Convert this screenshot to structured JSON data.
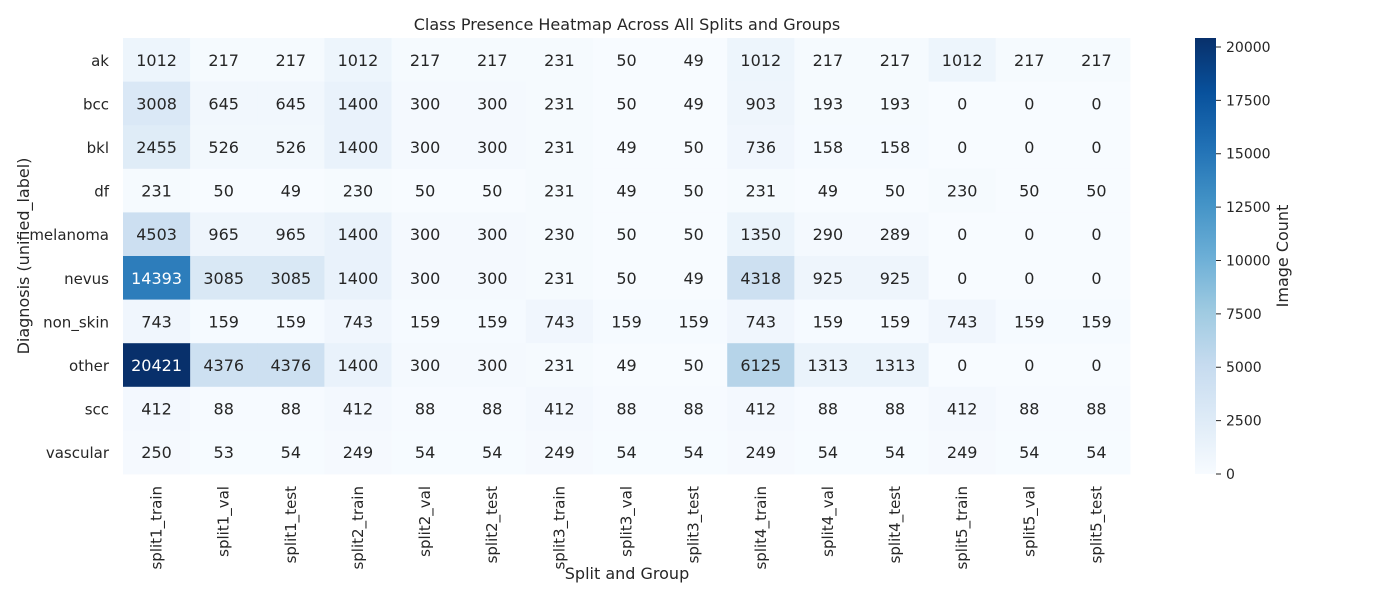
{
  "chart_data": {
    "type": "heatmap",
    "title": "Class Presence Heatmap Across All Splits and Groups",
    "xlabel": "Split and Group",
    "ylabel": "Diagnosis (unified_label)",
    "colorbar_label": "Image Count",
    "colormap": "Blues",
    "color_range": [
      0,
      20421
    ],
    "colorbar_ticks": [
      "0",
      "2500",
      "5000",
      "7500",
      "10000",
      "12500",
      "15000",
      "17500",
      "20000"
    ],
    "colors": {
      "low": "#f7fbff",
      "high": "#08306b"
    },
    "x_categories": [
      "split1_train",
      "split1_val",
      "split1_test",
      "split2_train",
      "split2_val",
      "split2_test",
      "split3_train",
      "split3_val",
      "split3_test",
      "split4_train",
      "split4_val",
      "split4_test",
      "split5_train",
      "split5_val",
      "split5_test"
    ],
    "y_categories": [
      "ak",
      "bcc",
      "bkl",
      "df",
      "melanoma",
      "nevus",
      "non_skin",
      "other",
      "scc",
      "vascular"
    ],
    "values": [
      [
        1012,
        217,
        217,
        1012,
        217,
        217,
        231,
        50,
        49,
        1012,
        217,
        217,
        1012,
        217,
        217
      ],
      [
        3008,
        645,
        645,
        1400,
        300,
        300,
        231,
        50,
        49,
        903,
        193,
        193,
        0,
        0,
        0
      ],
      [
        2455,
        526,
        526,
        1400,
        300,
        300,
        231,
        49,
        50,
        736,
        158,
        158,
        0,
        0,
        0
      ],
      [
        231,
        50,
        49,
        230,
        50,
        50,
        231,
        49,
        50,
        231,
        49,
        50,
        230,
        50,
        50
      ],
      [
        4503,
        965,
        965,
        1400,
        300,
        300,
        230,
        50,
        50,
        1350,
        290,
        289,
        0,
        0,
        0
      ],
      [
        14393,
        3085,
        3085,
        1400,
        300,
        300,
        231,
        50,
        49,
        4318,
        925,
        925,
        0,
        0,
        0
      ],
      [
        743,
        159,
        159,
        743,
        159,
        159,
        743,
        159,
        159,
        743,
        159,
        159,
        743,
        159,
        159
      ],
      [
        20421,
        4376,
        4376,
        1400,
        300,
        300,
        231,
        49,
        50,
        6125,
        1313,
        1313,
        0,
        0,
        0
      ],
      [
        412,
        88,
        88,
        412,
        88,
        88,
        412,
        88,
        88,
        412,
        88,
        88,
        412,
        88,
        88
      ],
      [
        250,
        53,
        54,
        249,
        54,
        54,
        249,
        54,
        54,
        249,
        54,
        54,
        249,
        54,
        54
      ]
    ]
  }
}
